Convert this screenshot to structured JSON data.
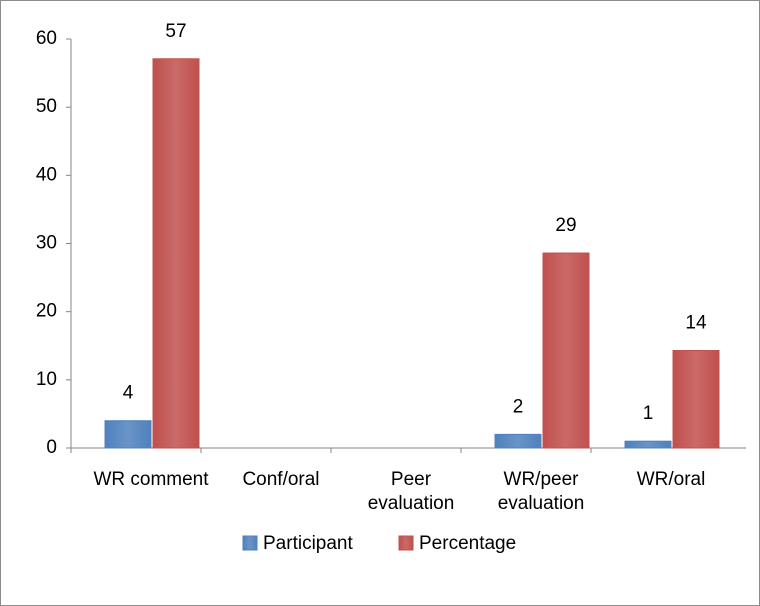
{
  "chart_data": {
    "type": "bar",
    "categories": [
      "WR comment",
      "Conf/oral",
      "Peer evaluation",
      "WR/peer evaluation",
      "WR/oral"
    ],
    "series": [
      {
        "name": "Participant",
        "color": "#4f81bd",
        "values": [
          4,
          null,
          null,
          2,
          1
        ]
      },
      {
        "name": "Percentage",
        "color": "#c0504d",
        "values": [
          57.1,
          null,
          null,
          28.6,
          14.3
        ],
        "value_labels": [
          "57",
          null,
          null,
          "29",
          "14"
        ]
      }
    ],
    "ylim": [
      0,
      60
    ],
    "yticks": [
      0,
      10,
      20,
      30,
      40,
      50,
      60
    ],
    "legend": "bottom"
  }
}
